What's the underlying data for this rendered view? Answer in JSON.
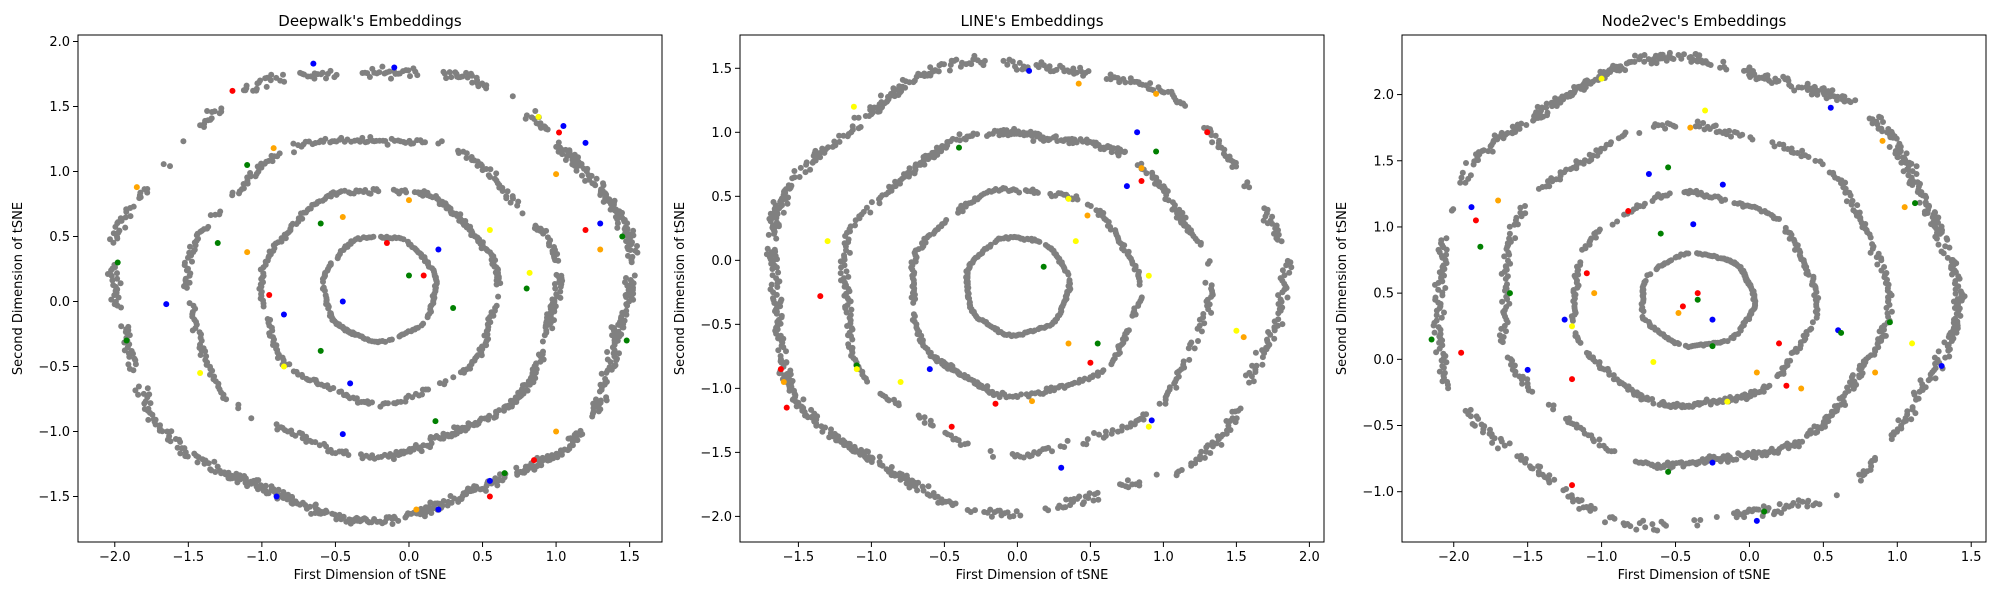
{
  "chart_data": [
    {
      "type": "scatter",
      "title": "Deepwalk's Embeddings",
      "xlabel": "First Dimension of tSNE",
      "ylabel": "Second Dimension of tSNE",
      "xlim": [
        -2.25,
        1.72
      ],
      "ylim": [
        -1.85,
        2.05
      ],
      "xticks": [
        -2.0,
        -1.5,
        -1.0,
        -0.5,
        0.0,
        0.5,
        1.0,
        1.5
      ],
      "xtick_labels": [
        "−2.0",
        "−1.5",
        "−1.0",
        "−0.5",
        "0.0",
        "0.5",
        "1.0",
        "1.5"
      ],
      "yticks": [
        -1.5,
        -1.0,
        -0.5,
        0.0,
        0.5,
        1.0,
        1.5,
        2.0
      ],
      "ytick_labels": [
        "−1.5",
        "−1.0",
        "−0.5",
        "0.0",
        "0.5",
        "1.0",
        "1.5",
        "2.0"
      ],
      "grid": false,
      "series": [
        {
          "color": "#808080",
          "shape": "ellipse",
          "center": [
            -0.25,
            0.08
          ],
          "radii": [
            1.75,
            1.72
          ],
          "n": 700
        },
        {
          "color": "#808080",
          "shape": "ellipse",
          "center": [
            -0.25,
            0.05
          ],
          "radii": [
            1.25,
            1.22
          ],
          "n": 420
        },
        {
          "color": "#808080",
          "shape": "ellipse",
          "center": [
            -0.2,
            0.05
          ],
          "radii": [
            0.8,
            0.82
          ],
          "n": 300
        },
        {
          "color": "#808080",
          "shape": "ellipse",
          "center": [
            -0.2,
            0.1
          ],
          "radii": [
            0.38,
            0.4
          ],
          "n": 160
        },
        {
          "color": "#0000ff",
          "points": [
            [
              -0.65,
              1.83
            ],
            [
              -0.1,
              1.8
            ],
            [
              1.05,
              1.35
            ],
            [
              1.2,
              1.22
            ],
            [
              -0.45,
              0.0
            ],
            [
              0.2,
              0.4
            ],
            [
              -0.85,
              -0.1
            ],
            [
              -0.4,
              -0.63
            ],
            [
              -0.45,
              -1.02
            ],
            [
              0.55,
              -1.38
            ],
            [
              0.2,
              -1.6
            ],
            [
              -0.9,
              -1.5
            ],
            [
              -1.65,
              -0.02
            ],
            [
              1.3,
              0.6
            ]
          ]
        },
        {
          "color": "#ff0000",
          "points": [
            [
              1.02,
              1.3
            ],
            [
              -1.2,
              1.62
            ],
            [
              0.85,
              -1.22
            ],
            [
              1.2,
              0.55
            ],
            [
              0.1,
              0.2
            ],
            [
              -0.15,
              0.45
            ],
            [
              -0.95,
              0.05
            ],
            [
              0.55,
              -1.5
            ]
          ]
        },
        {
          "color": "#008000",
          "points": [
            [
              -1.98,
              0.3
            ],
            [
              -1.92,
              -0.3
            ],
            [
              -1.3,
              0.45
            ],
            [
              -1.1,
              1.05
            ],
            [
              -0.6,
              0.6
            ],
            [
              0.0,
              0.2
            ],
            [
              0.3,
              -0.05
            ],
            [
              -0.6,
              -0.38
            ],
            [
              0.18,
              -0.92
            ],
            [
              0.65,
              -1.32
            ],
            [
              1.45,
              0.5
            ],
            [
              1.48,
              -0.3
            ],
            [
              0.8,
              0.1
            ]
          ]
        },
        {
          "color": "#ffa500",
          "points": [
            [
              -1.85,
              0.88
            ],
            [
              -0.92,
              1.18
            ],
            [
              0.0,
              0.78
            ],
            [
              1.0,
              0.98
            ],
            [
              1.3,
              0.4
            ],
            [
              -1.1,
              0.38
            ],
            [
              0.05,
              -1.6
            ],
            [
              1.0,
              -1.0
            ],
            [
              -0.45,
              0.65
            ]
          ]
        },
        {
          "color": "#ffff00",
          "points": [
            [
              0.88,
              1.42
            ],
            [
              -1.42,
              -0.55
            ],
            [
              -0.85,
              -0.5
            ],
            [
              0.82,
              0.22
            ],
            [
              0.55,
              0.55
            ]
          ]
        }
      ]
    },
    {
      "type": "scatter",
      "title": "LINE's Embeddings",
      "xlabel": "First Dimension of tSNE",
      "ylabel": "Second Dimension of tSNE",
      "xlim": [
        -1.9,
        2.1
      ],
      "ylim": [
        -2.2,
        1.76
      ],
      "xticks": [
        -1.5,
        -1.0,
        -0.5,
        0.0,
        0.5,
        1.0,
        1.5,
        2.0
      ],
      "xtick_labels": [
        "−1.5",
        "−1.0",
        "−0.5",
        "0.0",
        "0.5",
        "1.0",
        "1.5",
        "2.0"
      ],
      "yticks": [
        -2.0,
        -1.5,
        -1.0,
        -0.5,
        0.0,
        0.5,
        1.0,
        1.5
      ],
      "ytick_labels": [
        "−2.0",
        "−1.5",
        "−1.0",
        "−0.5",
        "0.0",
        "0.5",
        "1.0",
        "1.5"
      ],
      "grid": false,
      "series": [
        {
          "color": "#808080",
          "shape": "ellipse",
          "center": [
            0.05,
            -0.2
          ],
          "radii": [
            1.75,
            1.75
          ],
          "n": 620
        },
        {
          "color": "#808080",
          "shape": "ellipse",
          "center": [
            0.05,
            -0.25
          ],
          "radii": [
            1.25,
            1.25
          ],
          "n": 400
        },
        {
          "color": "#808080",
          "shape": "ellipse",
          "center": [
            0.05,
            -0.25
          ],
          "radii": [
            0.78,
            0.8
          ],
          "n": 280
        },
        {
          "color": "#808080",
          "shape": "ellipse",
          "center": [
            0.0,
            -0.2
          ],
          "radii": [
            0.35,
            0.38
          ],
          "n": 160
        },
        {
          "color": "#0000ff",
          "points": [
            [
              0.08,
              1.48
            ],
            [
              0.75,
              0.58
            ],
            [
              -0.6,
              -0.85
            ],
            [
              0.3,
              -1.62
            ],
            [
              0.92,
              -1.25
            ],
            [
              0.82,
              1.0
            ]
          ]
        },
        {
          "color": "#ff0000",
          "points": [
            [
              -1.62,
              -0.85
            ],
            [
              -1.58,
              -1.15
            ],
            [
              -1.35,
              -0.28
            ],
            [
              1.3,
              1.0
            ],
            [
              -0.15,
              -1.12
            ],
            [
              0.5,
              -0.8
            ],
            [
              -0.45,
              -1.3
            ],
            [
              0.85,
              0.62
            ]
          ]
        },
        {
          "color": "#008000",
          "points": [
            [
              -0.4,
              0.88
            ],
            [
              0.18,
              -0.05
            ],
            [
              0.55,
              -0.65
            ],
            [
              -1.1,
              -0.82
            ],
            [
              0.95,
              0.85
            ]
          ]
        },
        {
          "color": "#ffa500",
          "points": [
            [
              0.95,
              1.3
            ],
            [
              0.48,
              0.35
            ],
            [
              0.85,
              0.72
            ],
            [
              0.35,
              -0.65
            ],
            [
              0.1,
              -1.1
            ],
            [
              1.55,
              -0.6
            ],
            [
              -1.6,
              -0.95
            ],
            [
              0.42,
              1.38
            ]
          ]
        },
        {
          "color": "#ffff00",
          "points": [
            [
              -1.12,
              1.2
            ],
            [
              -1.3,
              0.15
            ],
            [
              0.4,
              0.15
            ],
            [
              0.9,
              -0.12
            ],
            [
              -1.1,
              -0.85
            ],
            [
              0.9,
              -1.3
            ],
            [
              1.5,
              -0.55
            ],
            [
              0.35,
              0.48
            ],
            [
              -0.8,
              -0.95
            ]
          ]
        }
      ]
    },
    {
      "type": "scatter",
      "title": "Node2vec's Embeddings",
      "xlabel": "First Dimension of tSNE",
      "ylabel": "Second Dimension of tSNE",
      "xlim": [
        -2.35,
        1.6
      ],
      "ylim": [
        -1.38,
        2.45
      ],
      "xticks": [
        -2.0,
        -1.5,
        -1.0,
        -0.5,
        0.0,
        0.5,
        1.0,
        1.5
      ],
      "xtick_labels": [
        "−2.0",
        "−1.5",
        "−1.0",
        "−0.5",
        "0.0",
        "0.5",
        "1.0",
        "1.5"
      ],
      "yticks": [
        -1.0,
        -0.5,
        0.0,
        0.5,
        1.0,
        1.5,
        2.0
      ],
      "ytick_labels": [
        "−1.0",
        "−0.5",
        "0.0",
        "0.5",
        "1.0",
        "1.5",
        "2.0"
      ],
      "grid": false,
      "series": [
        {
          "color": "#808080",
          "shape": "ellipse",
          "center": [
            -0.38,
            0.5
          ],
          "radii": [
            1.75,
            1.75
          ],
          "n": 650
        },
        {
          "color": "#808080",
          "shape": "ellipse",
          "center": [
            -0.38,
            0.48
          ],
          "radii": [
            1.3,
            1.28
          ],
          "n": 420
        },
        {
          "color": "#808080",
          "shape": "ellipse",
          "center": [
            -0.38,
            0.45
          ],
          "radii": [
            0.82,
            0.8
          ],
          "n": 300
        },
        {
          "color": "#808080",
          "shape": "ellipse",
          "center": [
            -0.35,
            0.45
          ],
          "radii": [
            0.38,
            0.35
          ],
          "n": 170
        },
        {
          "color": "#0000ff",
          "points": [
            [
              -1.88,
              1.15
            ],
            [
              -1.5,
              -0.08
            ],
            [
              -1.25,
              0.3
            ],
            [
              -0.68,
              1.4
            ],
            [
              -0.38,
              1.02
            ],
            [
              -0.18,
              1.32
            ],
            [
              0.55,
              1.9
            ],
            [
              0.6,
              0.22
            ],
            [
              1.3,
              -0.05
            ],
            [
              0.05,
              -1.22
            ],
            [
              -0.25,
              -0.78
            ],
            [
              -0.25,
              0.3
            ]
          ]
        },
        {
          "color": "#ff0000",
          "points": [
            [
              -1.85,
              1.05
            ],
            [
              -1.2,
              -0.95
            ],
            [
              -1.1,
              0.65
            ],
            [
              -0.82,
              1.12
            ],
            [
              -0.45,
              0.4
            ],
            [
              -0.35,
              0.5
            ],
            [
              0.2,
              0.12
            ],
            [
              0.25,
              -0.2
            ],
            [
              -1.95,
              0.05
            ],
            [
              -1.2,
              -0.15
            ]
          ]
        },
        {
          "color": "#008000",
          "points": [
            [
              -2.15,
              0.15
            ],
            [
              -1.82,
              0.85
            ],
            [
              -1.62,
              0.5
            ],
            [
              -0.55,
              1.45
            ],
            [
              -0.6,
              0.95
            ],
            [
              -0.35,
              0.45
            ],
            [
              -0.25,
              0.1
            ],
            [
              0.1,
              -1.15
            ],
            [
              1.12,
              1.18
            ],
            [
              0.62,
              0.2
            ],
            [
              0.95,
              0.28
            ],
            [
              -0.55,
              -0.85
            ]
          ]
        },
        {
          "color": "#ffa500",
          "points": [
            [
              -1.7,
              1.2
            ],
            [
              -1.05,
              0.5
            ],
            [
              -0.48,
              0.35
            ],
            [
              0.35,
              -0.22
            ],
            [
              0.05,
              -0.1
            ],
            [
              0.85,
              -0.1
            ],
            [
              1.05,
              1.15
            ],
            [
              0.9,
              1.65
            ],
            [
              -0.4,
              1.75
            ]
          ]
        },
        {
          "color": "#ffff00",
          "points": [
            [
              -1.0,
              2.12
            ],
            [
              -0.65,
              -0.02
            ],
            [
              -0.15,
              -0.32
            ],
            [
              -0.3,
              1.88
            ],
            [
              -1.2,
              0.25
            ],
            [
              1.1,
              0.12
            ]
          ]
        }
      ]
    }
  ]
}
